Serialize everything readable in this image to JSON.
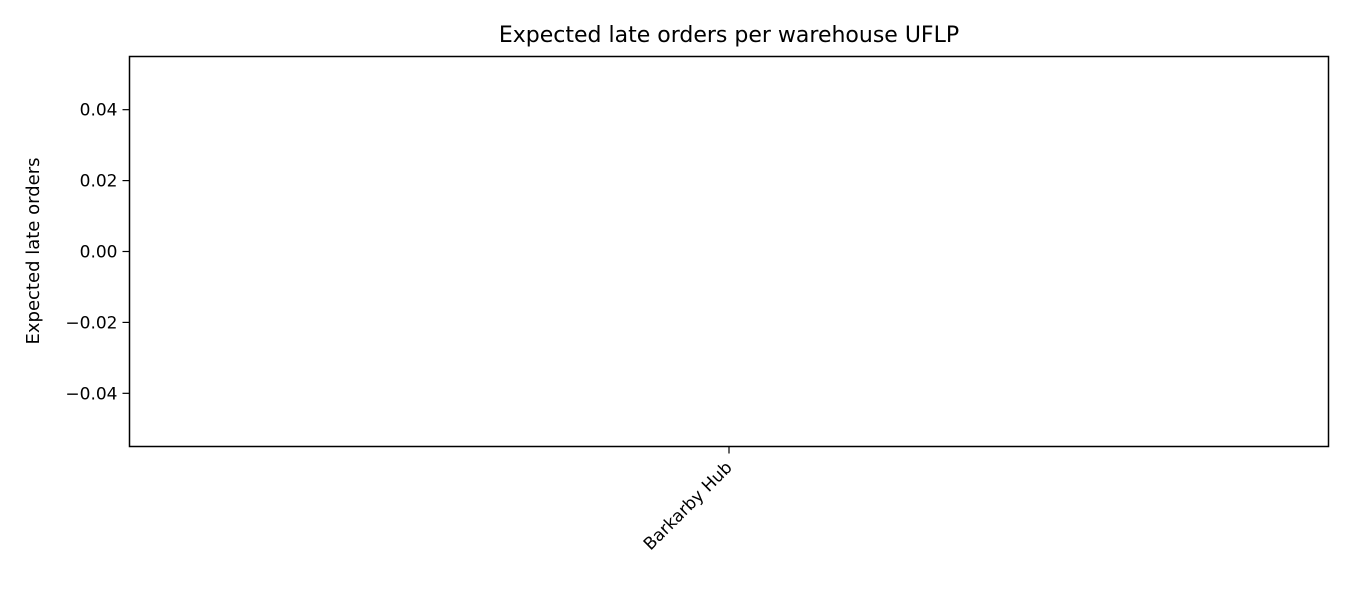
{
  "chart_data": {
    "type": "bar",
    "title": "Expected late orders per warehouse UFLP",
    "xlabel": "",
    "ylabel": "Expected late orders",
    "categories": [
      "Barkarby Hub"
    ],
    "values": [
      0
    ],
    "ylim": [
      -0.055,
      0.055
    ],
    "yticks": [
      -0.04,
      -0.02,
      0.0,
      0.02,
      0.04
    ],
    "ytick_labels": [
      "−0.04",
      "−0.02",
      "0.00",
      "0.02",
      "0.04"
    ],
    "xtick_rotation": "45deg, right-aligned",
    "grid": false,
    "legend": "none",
    "bar_color": "#1f77b4"
  }
}
